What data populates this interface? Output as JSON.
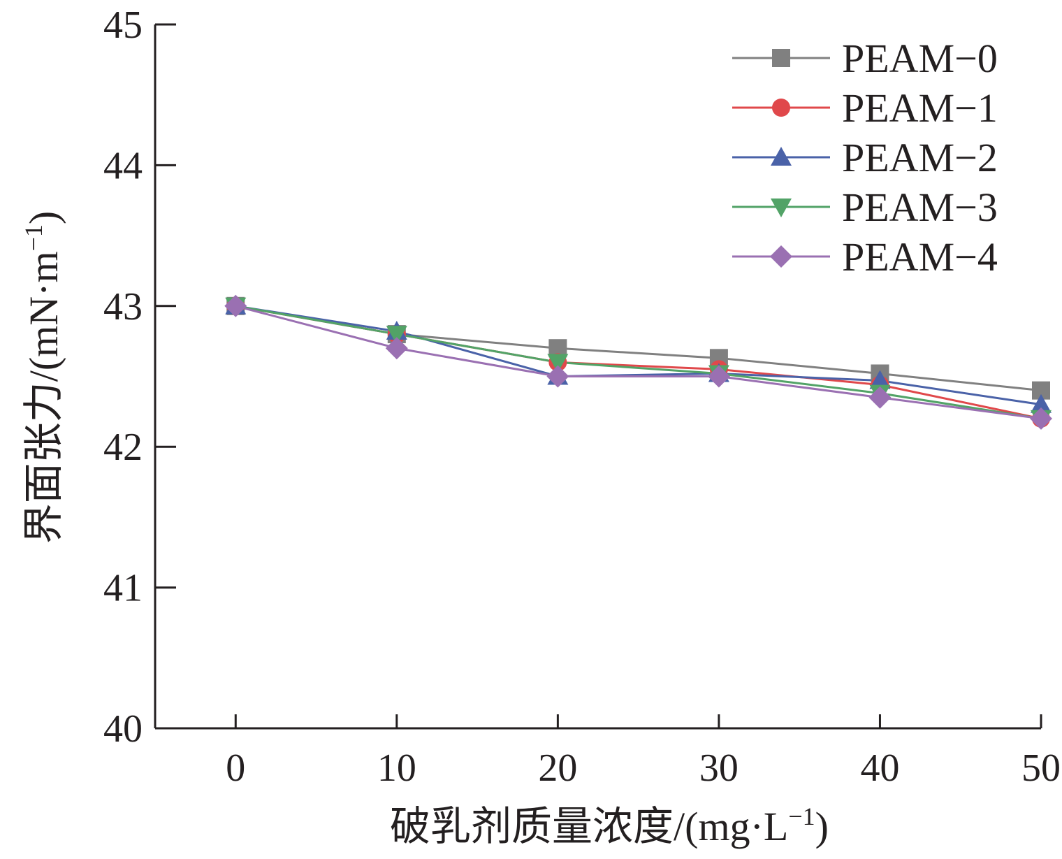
{
  "chart_data": {
    "type": "line",
    "title": "",
    "xlabel": "破乳剂质量浓度/(mg·L",
    "xlabel_sup": "−1",
    "xlabel_close": ")",
    "ylabel": "界面张力/(mN·m",
    "ylabel_sup": "−1",
    "ylabel_close": ")",
    "x": [
      0,
      10,
      20,
      30,
      40,
      50
    ],
    "x_ticks": [
      "0",
      "10",
      "20",
      "30",
      "40",
      "50"
    ],
    "y_ticks": [
      "40",
      "41",
      "42",
      "43",
      "44",
      "45"
    ],
    "xlim": [
      -5,
      50
    ],
    "ylim": [
      40,
      45
    ],
    "grid": false,
    "legend_position": "top-right",
    "series": [
      {
        "name": "PEAM−0",
        "color": "#808080",
        "marker": "square",
        "values": [
          43.0,
          42.8,
          42.7,
          42.63,
          42.52,
          42.4
        ]
      },
      {
        "name": "PEAM−1",
        "color": "#e0484b",
        "marker": "circle",
        "values": [
          43.0,
          42.8,
          42.6,
          42.55,
          42.44,
          42.2
        ]
      },
      {
        "name": "PEAM−2",
        "color": "#4a62a8",
        "marker": "triangle-up",
        "values": [
          43.0,
          42.82,
          42.5,
          42.52,
          42.47,
          42.3
        ]
      },
      {
        "name": "PEAM−3",
        "color": "#52a367",
        "marker": "triangle-down",
        "values": [
          43.0,
          42.8,
          42.6,
          42.52,
          42.38,
          42.2
        ]
      },
      {
        "name": "PEAM−4",
        "color": "#9a70b2",
        "marker": "diamond",
        "values": [
          43.0,
          42.7,
          42.5,
          42.5,
          42.35,
          42.2
        ]
      }
    ]
  }
}
